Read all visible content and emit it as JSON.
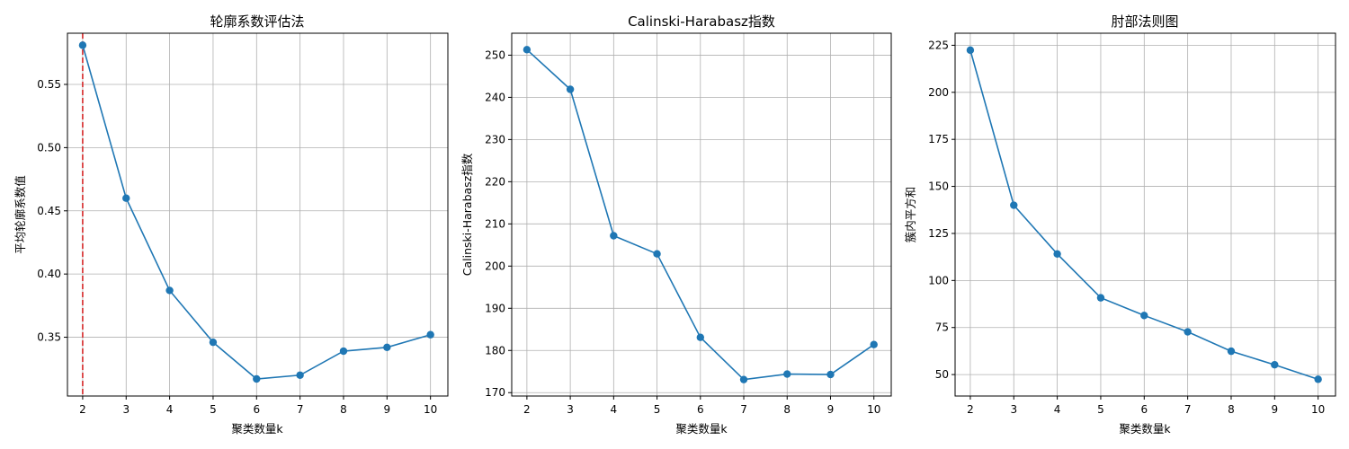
{
  "figure": {
    "line_color": "#1f77b4",
    "marker_color": "#1f77b4",
    "reference_line_color": "#d62728"
  },
  "chart_data": [
    {
      "type": "line",
      "title": "轮廓系数评估法",
      "xlabel": "聚类数量k",
      "ylabel": "平均轮廓系数值",
      "x": [
        2,
        3,
        4,
        5,
        6,
        7,
        8,
        9,
        10
      ],
      "values": [
        0.581,
        0.46,
        0.387,
        0.346,
        0.317,
        0.32,
        0.339,
        0.342,
        0.352
      ],
      "xlim": [
        1.65,
        10.4
      ],
      "ylim": [
        0.3035,
        0.5905
      ],
      "xticks": [
        2,
        3,
        4,
        5,
        6,
        7,
        8,
        9,
        10
      ],
      "yticks": [
        "0.35",
        "0.40",
        "0.45",
        "0.50",
        "0.55"
      ],
      "ytick_values": [
        0.35,
        0.4,
        0.45,
        0.5,
        0.55
      ],
      "grid": true,
      "vline": 2,
      "vline_style": "dashed"
    },
    {
      "type": "line",
      "title": "Calinski-Harabasz指数",
      "xlabel": "聚类数量k",
      "ylabel": "Calinski-Harabasz指数",
      "x": [
        2,
        3,
        4,
        5,
        6,
        7,
        8,
        9,
        10
      ],
      "values": [
        251.3,
        241.9,
        207.2,
        202.9,
        183.1,
        173.1,
        174.4,
        174.3,
        181.4
      ],
      "xlim": [
        1.65,
        10.4
      ],
      "ylim": [
        169.2,
        255.2
      ],
      "xticks": [
        2,
        3,
        4,
        5,
        6,
        7,
        8,
        9,
        10
      ],
      "yticks": [
        "170",
        "180",
        "190",
        "200",
        "210",
        "220",
        "230",
        "240",
        "250"
      ],
      "ytick_values": [
        170,
        180,
        190,
        200,
        210,
        220,
        230,
        240,
        250
      ],
      "grid": true
    },
    {
      "type": "line",
      "title": "肘部法则图",
      "xlabel": "聚类数量k",
      "ylabel": "簇内平方和",
      "x": [
        2,
        3,
        4,
        5,
        6,
        7,
        8,
        9,
        10
      ],
      "values": [
        222.4,
        140.0,
        114.1,
        90.8,
        81.4,
        72.7,
        62.4,
        55.2,
        47.5
      ],
      "xlim": [
        1.65,
        10.4
      ],
      "ylim": [
        38.6,
        231.4
      ],
      "xticks": [
        2,
        3,
        4,
        5,
        6,
        7,
        8,
        9,
        10
      ],
      "yticks": [
        "50",
        "75",
        "100",
        "125",
        "150",
        "175",
        "200",
        "225"
      ],
      "ytick_values": [
        50,
        75,
        100,
        125,
        150,
        175,
        200,
        225
      ],
      "grid": true
    }
  ]
}
